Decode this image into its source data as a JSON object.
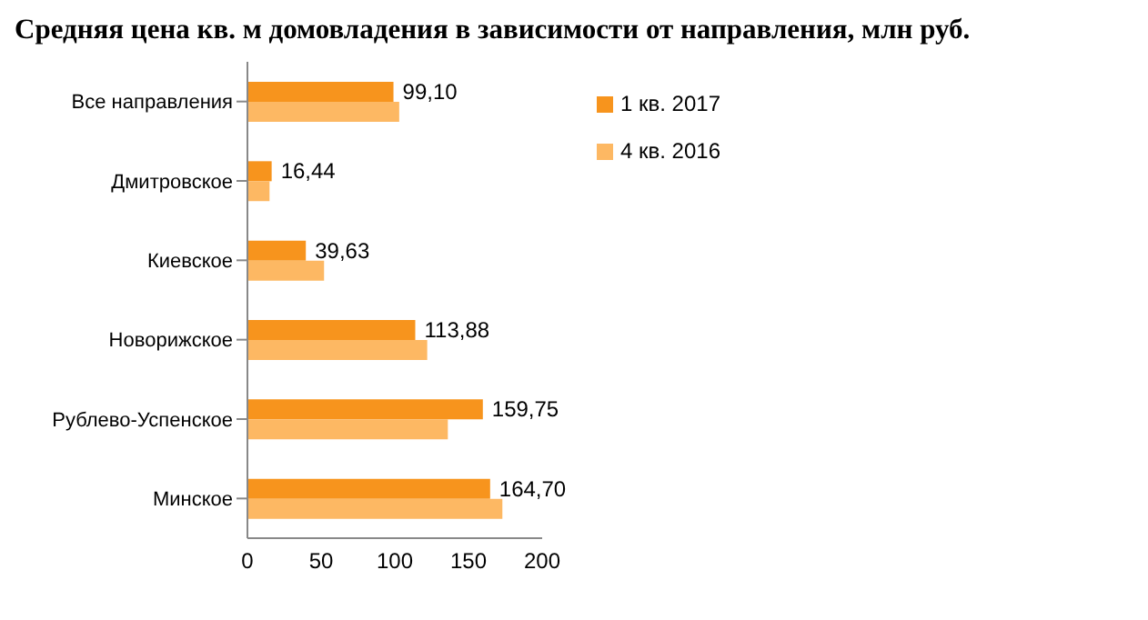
{
  "chart_data": {
    "type": "bar",
    "orientation": "horizontal",
    "title": "Средняя цена кв. м домовладения в зависимости от направления, млн руб.",
    "categories": [
      "Все направления",
      "Дмитровское",
      "Киевское",
      "Новорижское",
      "Рублево-Успенское",
      "Минское"
    ],
    "series": [
      {
        "name": "1 кв. 2017",
        "color": "#f7941d",
        "values": [
          99.1,
          16.44,
          39.63,
          113.88,
          159.75,
          164.7
        ],
        "value_labels": [
          "99,10",
          "16,44",
          "39,63",
          "113,88",
          "159,75",
          "164,70"
        ]
      },
      {
        "name": "4 кв. 2016",
        "color": "#fdb863",
        "values": [
          103,
          15,
          52,
          122,
          136,
          173
        ]
      }
    ],
    "xlim": [
      0,
      200
    ],
    "xticks": [
      0,
      50,
      100,
      150,
      200
    ],
    "grid": false,
    "legend": "top right"
  }
}
